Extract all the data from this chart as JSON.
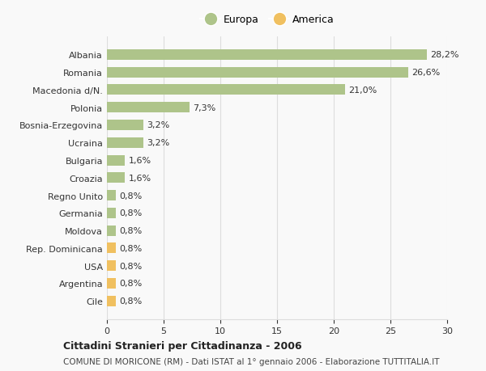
{
  "categories": [
    "Albania",
    "Romania",
    "Macedonia d/N.",
    "Polonia",
    "Bosnia-Erzegovina",
    "Ucraina",
    "Bulgaria",
    "Croazia",
    "Regno Unito",
    "Germania",
    "Moldova",
    "Rep. Dominicana",
    "USA",
    "Argentina",
    "Cile"
  ],
  "values": [
    28.2,
    26.6,
    21.0,
    7.3,
    3.2,
    3.2,
    1.6,
    1.6,
    0.8,
    0.8,
    0.8,
    0.8,
    0.8,
    0.8,
    0.8
  ],
  "labels": [
    "28,2%",
    "26,6%",
    "21,0%",
    "7,3%",
    "3,2%",
    "3,2%",
    "1,6%",
    "1,6%",
    "0,8%",
    "0,8%",
    "0,8%",
    "0,8%",
    "0,8%",
    "0,8%",
    "0,8%"
  ],
  "colors": [
    "#aec48a",
    "#aec48a",
    "#aec48a",
    "#aec48a",
    "#aec48a",
    "#aec48a",
    "#aec48a",
    "#aec48a",
    "#aec48a",
    "#aec48a",
    "#aec48a",
    "#f0c060",
    "#f0c060",
    "#f0c060",
    "#f0c060"
  ],
  "europa_color": "#aec48a",
  "america_color": "#f0c060",
  "background_color": "#f9f9f9",
  "grid_color": "#dddddd",
  "title": "Cittadini Stranieri per Cittadinanza - 2006",
  "subtitle": "COMUNE DI MORICONE (RM) - Dati ISTAT al 1° gennaio 2006 - Elaborazione TUTTITALIA.IT",
  "xlim": [
    0,
    30
  ],
  "xticks": [
    0,
    5,
    10,
    15,
    20,
    25,
    30
  ]
}
